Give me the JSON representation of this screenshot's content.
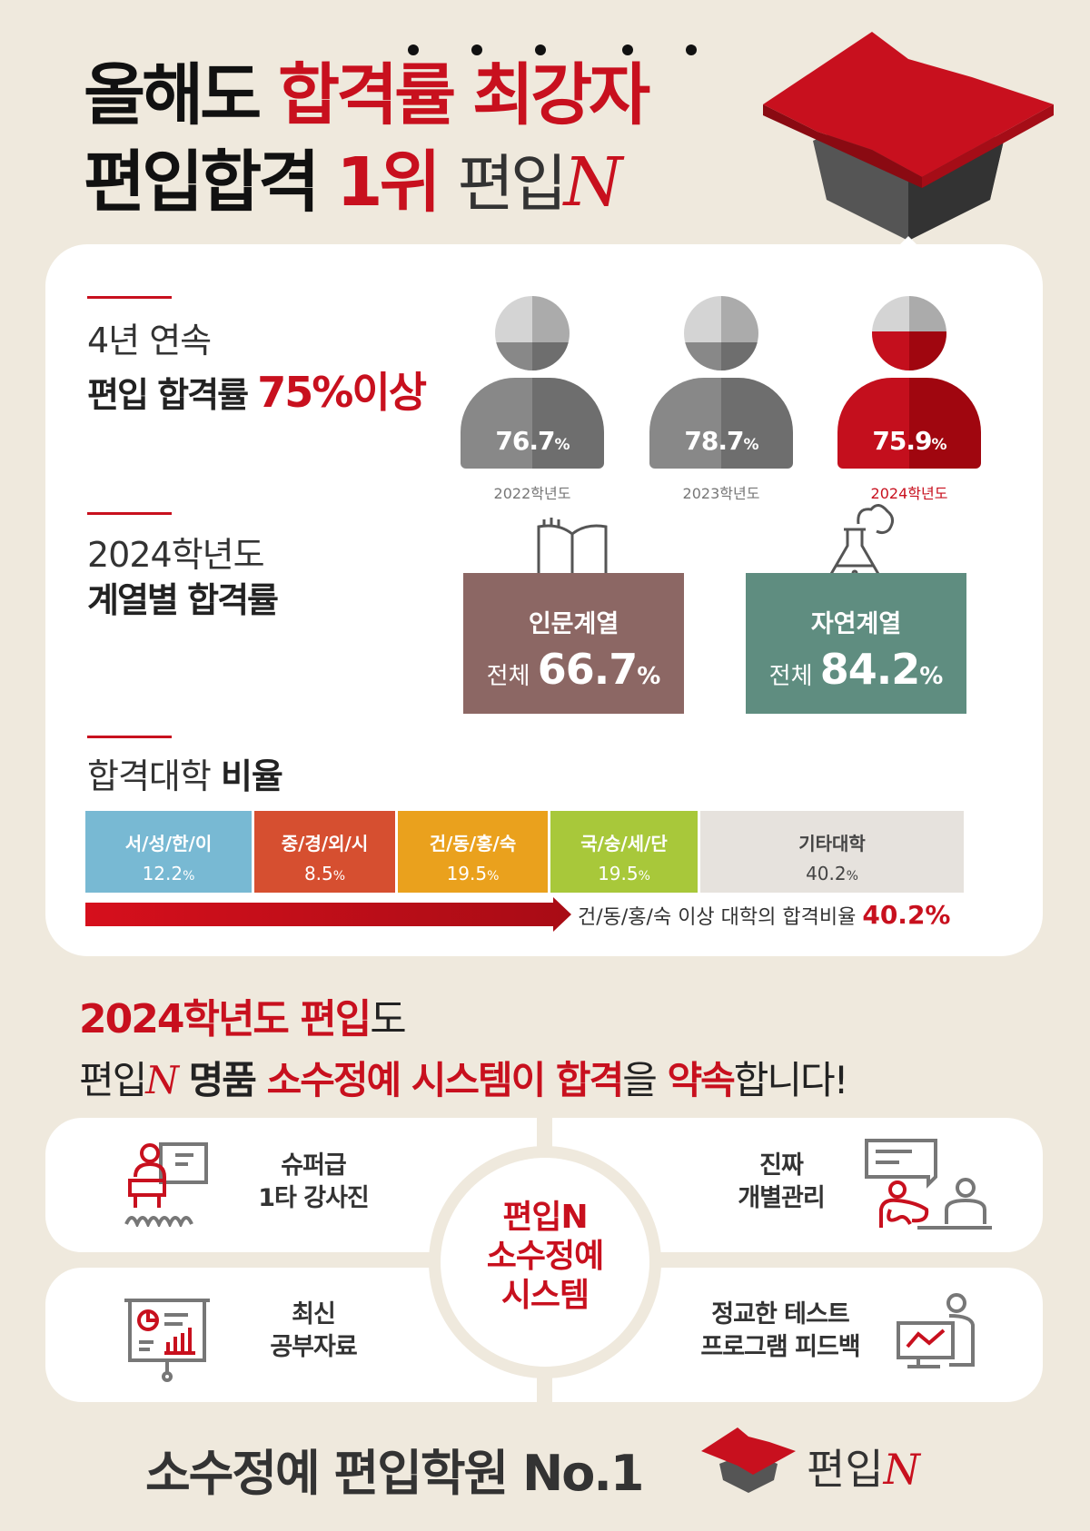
{
  "header": {
    "line1_black": "올해도",
    "line1_red": "합격률 최강자",
    "line2_black": "편입합격",
    "line2_red": "1위",
    "line2_brand": "편입",
    "brand_letter": "N"
  },
  "colors": {
    "accent": "#c8101e",
    "background": "#efe9dd",
    "humanities": "#8c6764",
    "science": "#5f8d80"
  },
  "section1": {
    "title_light": "4년 연속",
    "title_bold": "편입 합격률",
    "title_red": "75%이상",
    "people": [
      {
        "value": "76.7",
        "unit": "%",
        "label": "2022학년도",
        "highlight": false
      },
      {
        "value": "78.7",
        "unit": "%",
        "label": "2023학년도",
        "highlight": false
      },
      {
        "value": "75.9",
        "unit": "%",
        "label": "2024학년도",
        "highlight": true
      }
    ]
  },
  "section2": {
    "title_light": "2024학년도",
    "title_bold": "계열별 합격률",
    "boxes": [
      {
        "name": "인문계열",
        "prefix": "전체",
        "value": "66.7",
        "unit": "%",
        "icon": "book-icon"
      },
      {
        "name": "자연계열",
        "prefix": "전체",
        "value": "84.2",
        "unit": "%",
        "icon": "flask-icon"
      }
    ]
  },
  "section3": {
    "title_light": "합격대학",
    "title_bold": "비율",
    "segments": [
      {
        "name": "서/성/한/이",
        "value": "12.2",
        "unit": "%",
        "color": "#78b9d3"
      },
      {
        "name": "중/경/외/시",
        "value": "8.5",
        "unit": "%",
        "color": "#d64f30"
      },
      {
        "name": "건/동/홍/숙",
        "value": "19.5",
        "unit": "%",
        "color": "#eaa11d"
      },
      {
        "name": "국/숭/세/단",
        "value": "19.5",
        "unit": "%",
        "color": "#a8c83a"
      },
      {
        "name": "기타대학",
        "value": "40.2",
        "unit": "%",
        "color": "#e6e2dd"
      }
    ],
    "arrow_text": "건/동/홍/숙 이상 대학의 합격비율",
    "arrow_value": "40.2%"
  },
  "promo": {
    "l1_red": "2024학년도 편입",
    "l1_black": "도",
    "l2_brand": "편입",
    "l2_n": "N",
    "l2_a": "명품",
    "l2_b": "소수정예 시스템이 합격",
    "l2_c": "을",
    "l2_d": "약속",
    "l2_e": "합니다!"
  },
  "system": {
    "center": [
      "편입N",
      "소수정예",
      "시스템"
    ],
    "items": [
      {
        "text": [
          "슈퍼급",
          "1타 강사진"
        ],
        "icon": "lecturer-icon"
      },
      {
        "text": [
          "진짜",
          "개별관리"
        ],
        "icon": "mentoring-icon"
      },
      {
        "text": [
          "최신",
          "공부자료"
        ],
        "icon": "presentation-board-icon"
      },
      {
        "text": [
          "정교한 테스트",
          "프로그램 피드백"
        ],
        "icon": "monitor-analytics-icon"
      }
    ]
  },
  "footer": {
    "text": "소수정예 편입학원 No.1",
    "brand": "편입",
    "brand_n": "N"
  }
}
